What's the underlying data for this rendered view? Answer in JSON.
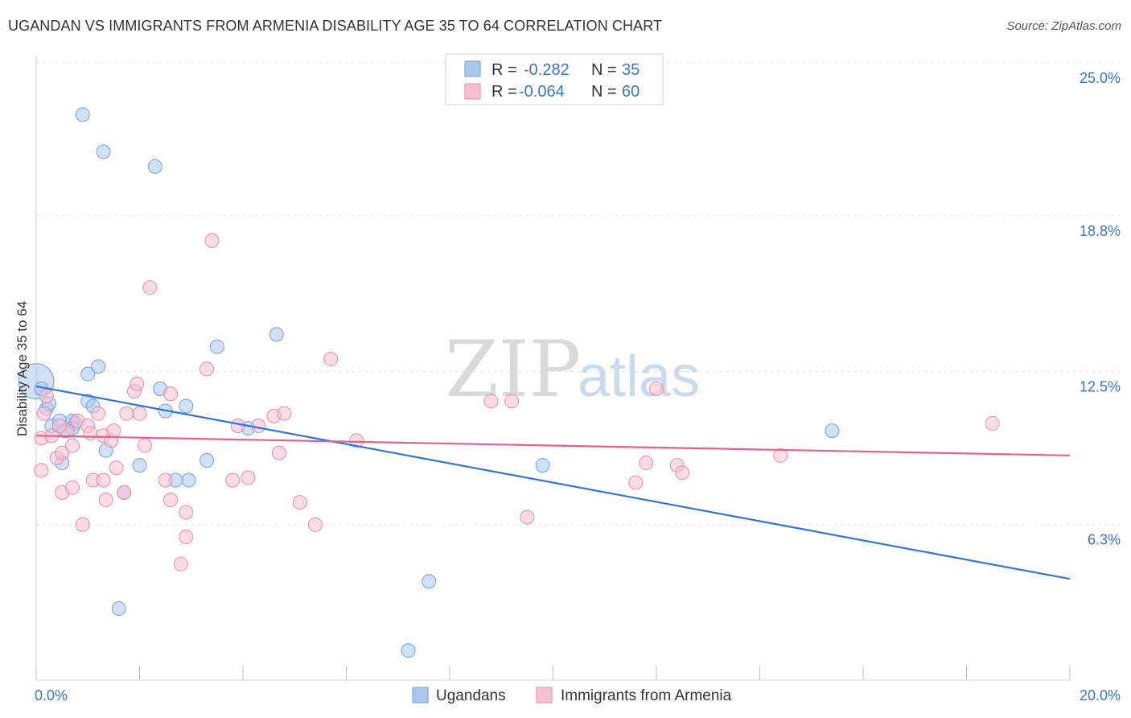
{
  "chart_data": {
    "type": "scatter",
    "title": "UGANDAN VS IMMIGRANTS FROM ARMENIA DISABILITY AGE 35 TO 64 CORRELATION CHART",
    "source": "Source: ZipAtlas.com",
    "ylabel": "Disability Age 35 to 64",
    "xlim": [
      0,
      20
    ],
    "ylim": [
      0,
      25
    ],
    "x_tick_labels": [
      "0.0%",
      "20.0%"
    ],
    "y_ticks": [
      {
        "value": 6.3,
        "label": "6.3%"
      },
      {
        "value": 12.5,
        "label": "12.5%"
      },
      {
        "value": 18.8,
        "label": "18.8%"
      },
      {
        "value": 25.0,
        "label": "25.0%"
      }
    ],
    "watermark": {
      "part1": "ZIP",
      "part2": "atlas"
    },
    "legend": {
      "r_label": "R =",
      "n_label": "N =",
      "entries": [
        {
          "r": "-0.282",
          "n": "35"
        },
        {
          "r": "-0.064",
          "n": "60"
        }
      ]
    },
    "series": [
      {
        "name": "Ugandans",
        "color": "#a9c8ee",
        "stroke": "#6f9fd8",
        "line_color": "#2f75d3",
        "trend": {
          "x0": 0,
          "y0": 11.9,
          "x1": 20,
          "y1": 4.1
        },
        "points": [
          [
            0.0,
            12.1
          ],
          [
            0.1,
            11.8
          ],
          [
            0.2,
            11.0
          ],
          [
            0.25,
            11.2
          ],
          [
            0.3,
            10.3
          ],
          [
            0.45,
            10.5
          ],
          [
            0.55,
            10.1
          ],
          [
            0.5,
            8.8
          ],
          [
            0.7,
            10.5
          ],
          [
            0.75,
            10.4
          ],
          [
            1.0,
            11.3
          ],
          [
            1.1,
            11.1
          ],
          [
            1.0,
            12.4
          ],
          [
            1.2,
            12.7
          ],
          [
            1.35,
            9.3
          ],
          [
            0.9,
            22.9
          ],
          [
            1.3,
            21.4
          ],
          [
            2.3,
            20.8
          ],
          [
            1.6,
            2.9
          ],
          [
            1.7,
            7.6
          ],
          [
            2.0,
            8.7
          ],
          [
            2.4,
            11.8
          ],
          [
            2.5,
            10.9
          ],
          [
            2.7,
            8.1
          ],
          [
            2.9,
            11.1
          ],
          [
            2.95,
            8.1
          ],
          [
            3.3,
            8.9
          ],
          [
            3.5,
            13.5
          ],
          [
            4.1,
            10.2
          ],
          [
            4.65,
            14.0
          ],
          [
            7.6,
            4.0
          ],
          [
            7.2,
            1.2
          ],
          [
            9.8,
            8.7
          ],
          [
            15.4,
            10.1
          ],
          [
            0.7,
            10.2
          ]
        ]
      },
      {
        "name": "Immigrants from Armenia",
        "color": "#f7bfd0",
        "stroke": "#e48aa8",
        "line_color": "#e0628f",
        "trend": {
          "x0": 0,
          "y0": 9.9,
          "x1": 20,
          "y1": 9.1
        },
        "points": [
          [
            0.1,
            8.5
          ],
          [
            0.1,
            9.8
          ],
          [
            0.15,
            10.8
          ],
          [
            0.2,
            11.5
          ],
          [
            0.3,
            9.9
          ],
          [
            0.4,
            9.0
          ],
          [
            0.5,
            7.6
          ],
          [
            0.5,
            9.2
          ],
          [
            0.6,
            10.1
          ],
          [
            0.7,
            9.5
          ],
          [
            0.7,
            7.8
          ],
          [
            0.8,
            10.5
          ],
          [
            0.9,
            6.3
          ],
          [
            1.0,
            10.3
          ],
          [
            1.05,
            10.0
          ],
          [
            1.1,
            8.1
          ],
          [
            1.2,
            10.8
          ],
          [
            1.3,
            9.9
          ],
          [
            1.35,
            7.3
          ],
          [
            1.45,
            9.7
          ],
          [
            1.5,
            10.1
          ],
          [
            1.55,
            8.6
          ],
          [
            1.7,
            7.6
          ],
          [
            1.75,
            10.8
          ],
          [
            1.9,
            11.7
          ],
          [
            1.95,
            12.0
          ],
          [
            2.1,
            9.5
          ],
          [
            2.0,
            10.8
          ],
          [
            2.2,
            15.9
          ],
          [
            2.5,
            8.1
          ],
          [
            2.6,
            7.3
          ],
          [
            2.6,
            11.6
          ],
          [
            2.8,
            4.7
          ],
          [
            2.9,
            6.8
          ],
          [
            2.9,
            5.8
          ],
          [
            3.3,
            12.6
          ],
          [
            3.4,
            17.8
          ],
          [
            3.8,
            8.1
          ],
          [
            3.9,
            10.3
          ],
          [
            4.1,
            8.2
          ],
          [
            4.3,
            10.3
          ],
          [
            4.6,
            10.7
          ],
          [
            4.7,
            9.2
          ],
          [
            4.8,
            10.8
          ],
          [
            5.1,
            7.2
          ],
          [
            5.4,
            6.3
          ],
          [
            5.7,
            13.0
          ],
          [
            6.2,
            9.7
          ],
          [
            8.8,
            11.3
          ],
          [
            9.2,
            11.3
          ],
          [
            9.5,
            6.6
          ],
          [
            11.6,
            8.0
          ],
          [
            11.8,
            8.8
          ],
          [
            12.0,
            11.8
          ],
          [
            12.4,
            8.7
          ],
          [
            12.5,
            8.4
          ],
          [
            14.4,
            9.1
          ],
          [
            18.5,
            10.4
          ],
          [
            0.45,
            10.3
          ],
          [
            1.3,
            8.1
          ]
        ]
      }
    ]
  }
}
